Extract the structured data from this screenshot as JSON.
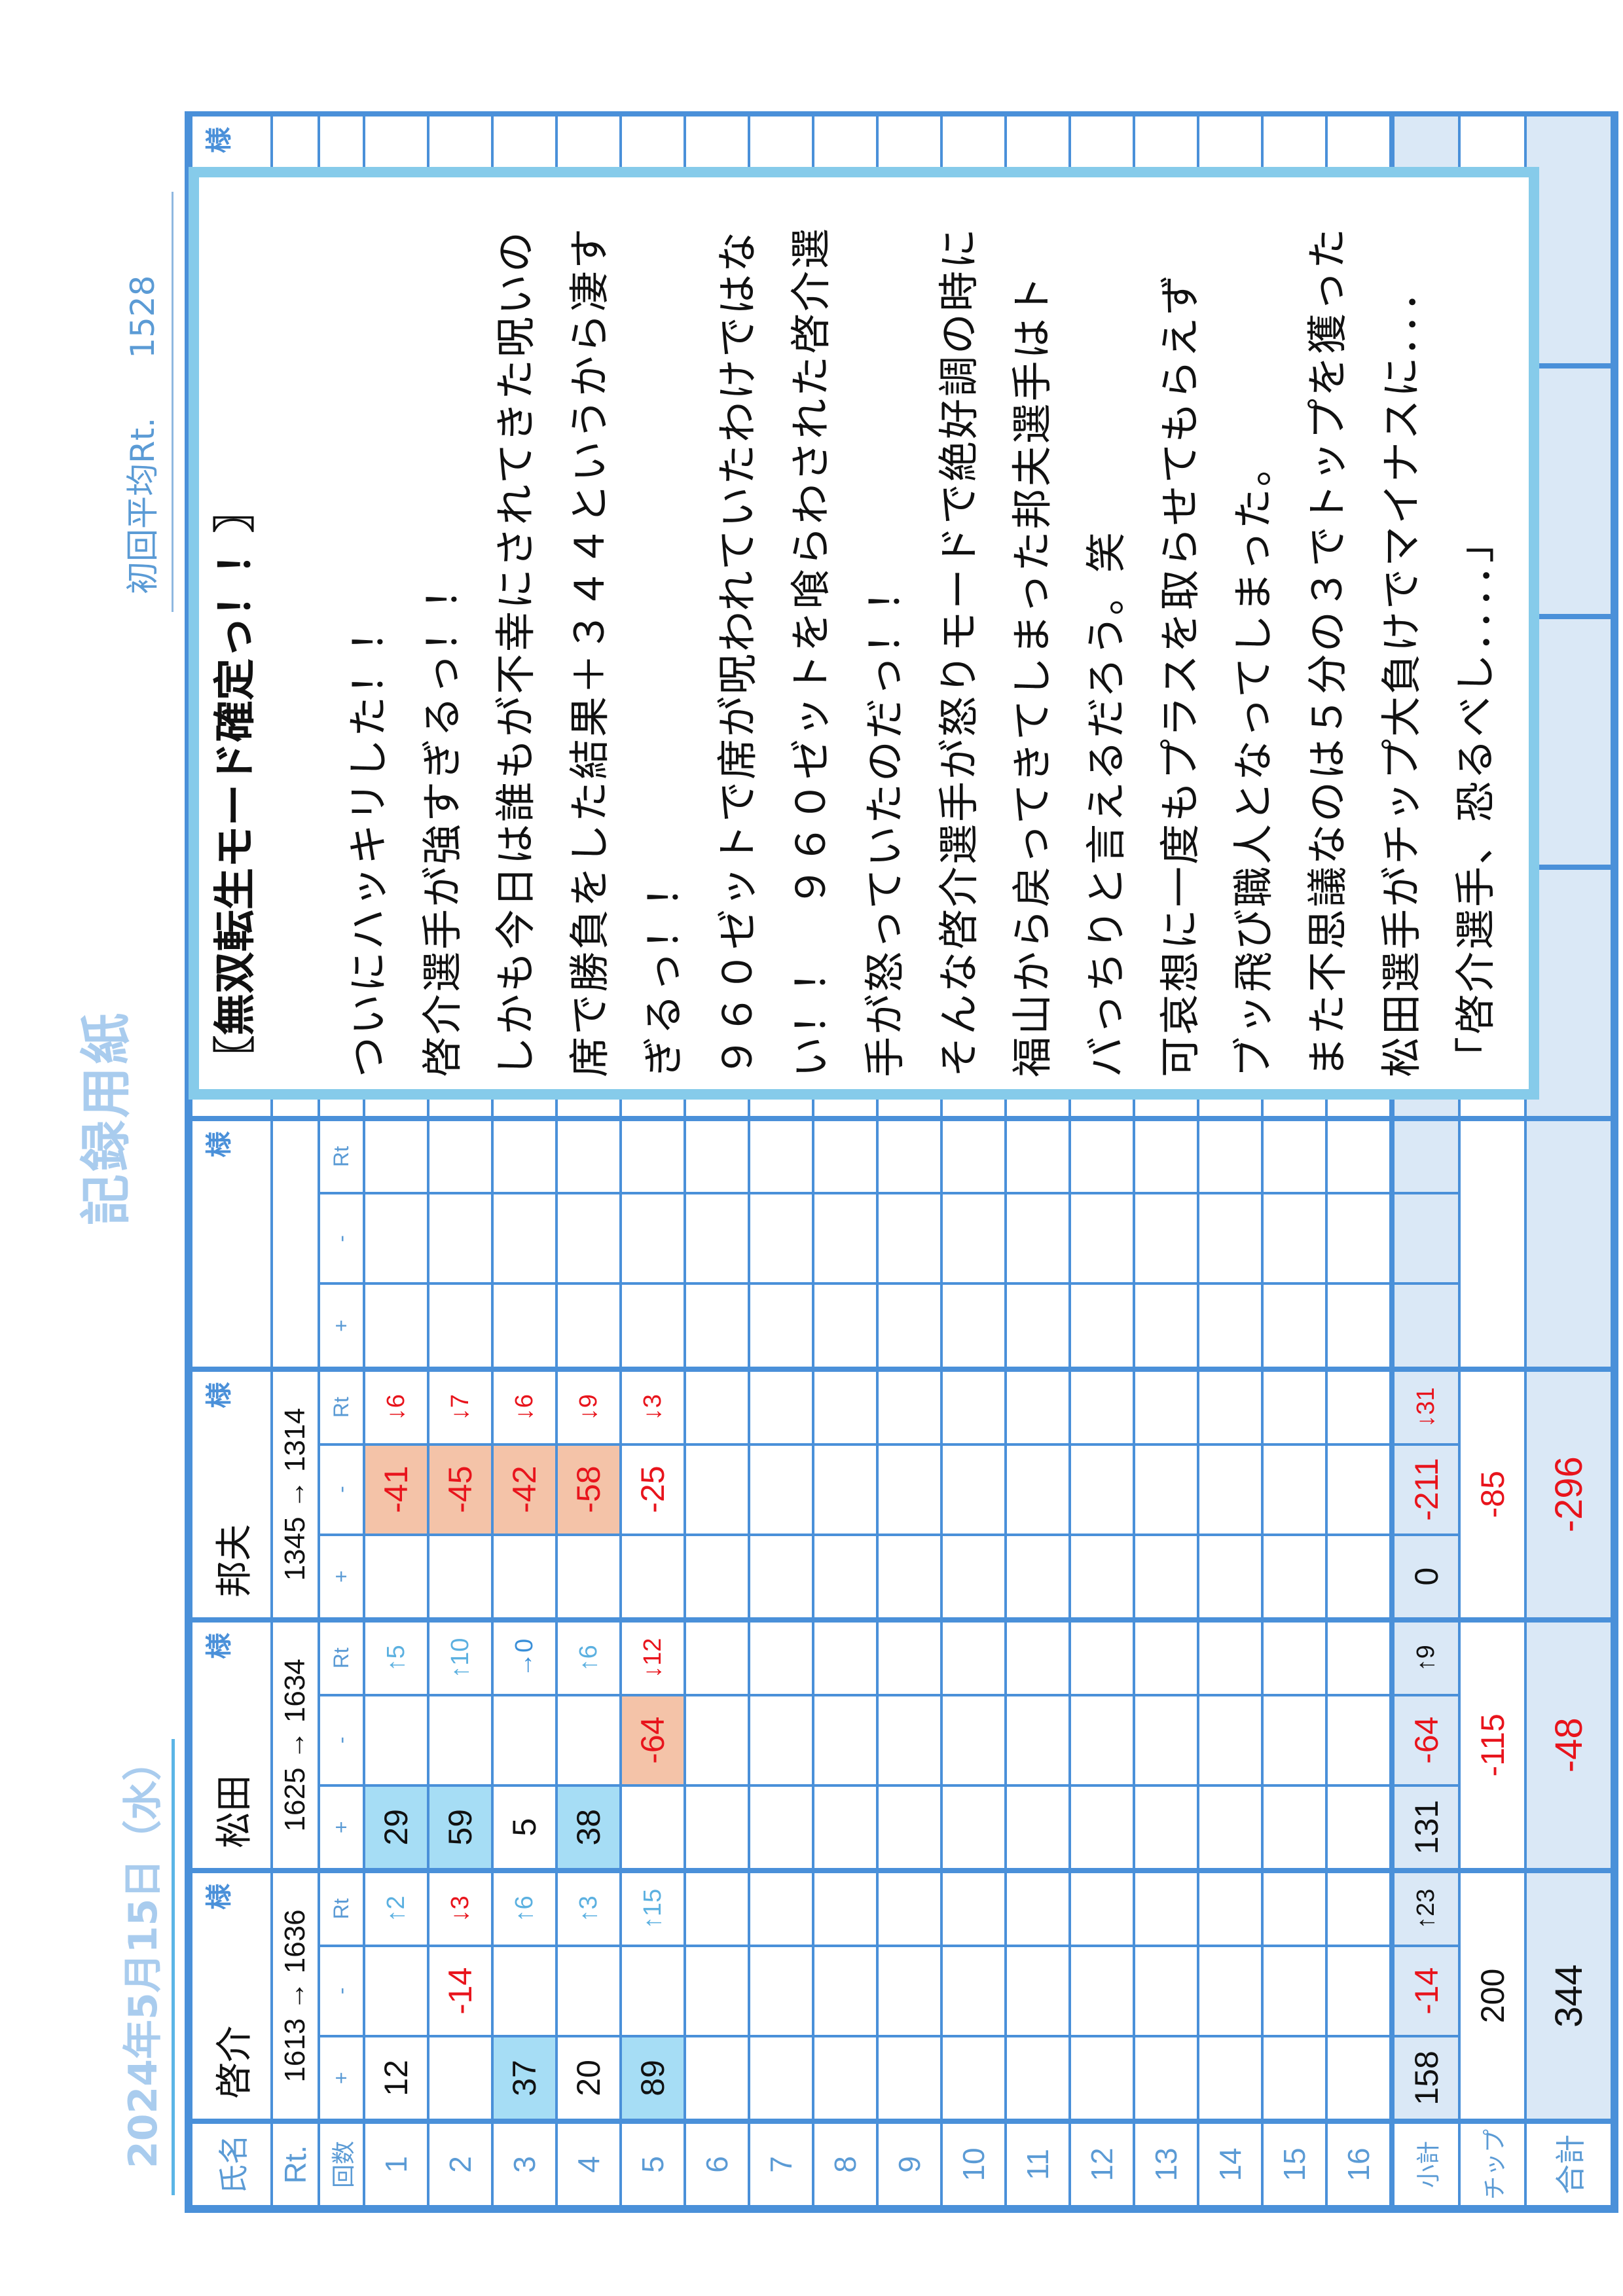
{
  "header": {
    "title": "記録用紙",
    "date": "2024年5月15日（水）",
    "avg_label": "初回平均Rt.",
    "avg_value": "1528"
  },
  "labels": {
    "name": "氏名",
    "rt": "Rt.",
    "rounds": "回数",
    "rows": [
      "1",
      "2",
      "3",
      "4",
      "5",
      "6",
      "7",
      "8",
      "9",
      "10",
      "11",
      "12",
      "13",
      "14",
      "15",
      "16"
    ],
    "subtotal": "小計",
    "chip": "チップ",
    "total": "合計",
    "plus": "+",
    "minus": "-",
    "rt_col": "Rt",
    "honorific": "様"
  },
  "colors": {
    "grid": "#4a90d9",
    "highlight_blue": "#a6ddf5",
    "highlight_salmon": "#f4c3a8",
    "negative": "#e8141c",
    "subtotal_bg": "#dae8f6"
  },
  "players": [
    {
      "name": "啓介",
      "rt_change": "1613 → 1636",
      "games": [
        {
          "plus": "12",
          "minus": "",
          "rt": "↑2",
          "dir": "up"
        },
        {
          "plus": "",
          "minus": "-14",
          "rt": "↓3",
          "dir": "down",
          "minus_hl": ""
        },
        {
          "plus": "37",
          "minus": "",
          "rt": "↑6",
          "dir": "up",
          "plus_hl": "blue"
        },
        {
          "plus": "20",
          "minus": "",
          "rt": "↑3",
          "dir": "up"
        },
        {
          "plus": "89",
          "minus": "",
          "rt": "↑15",
          "dir": "up",
          "plus_hl": "blue"
        }
      ],
      "subtotal": {
        "plus": "158",
        "minus": "-14",
        "rt": "↑23",
        "dir": "up"
      },
      "chip": "200",
      "total": "344"
    },
    {
      "name": "松田",
      "rt_change": "1625 → 1634",
      "games": [
        {
          "plus": "29",
          "minus": "",
          "rt": "↑5",
          "dir": "up",
          "plus_hl": "blue"
        },
        {
          "plus": "59",
          "minus": "",
          "rt": "↑10",
          "dir": "up",
          "plus_hl": "blue"
        },
        {
          "plus": "5",
          "minus": "",
          "rt": "→0",
          "dir": "flat"
        },
        {
          "plus": "38",
          "minus": "",
          "rt": "↑6",
          "dir": "up",
          "plus_hl": "blue"
        },
        {
          "plus": "",
          "minus": "-64",
          "rt": "↓12",
          "dir": "down",
          "minus_hl": "salmon"
        }
      ],
      "subtotal": {
        "plus": "131",
        "minus": "-64",
        "rt": "↑9",
        "dir": "up"
      },
      "chip": "-115",
      "total": "-48"
    },
    {
      "name": "邦夫",
      "rt_change": "1345 → 1314",
      "games": [
        {
          "plus": "",
          "minus": "-41",
          "rt": "↓6",
          "dir": "down",
          "minus_hl": "salmon"
        },
        {
          "plus": "",
          "minus": "-45",
          "rt": "↓7",
          "dir": "down",
          "minus_hl": "salmon"
        },
        {
          "plus": "",
          "minus": "-42",
          "rt": "↓6",
          "dir": "down",
          "minus_hl": "salmon"
        },
        {
          "plus": "",
          "minus": "-58",
          "rt": "↓9",
          "dir": "down",
          "minus_hl": "salmon"
        },
        {
          "plus": "",
          "minus": "-25",
          "rt": "↓3",
          "dir": "down"
        }
      ],
      "subtotal": {
        "plus": "0",
        "minus": "-211",
        "rt": "↓31",
        "dir": "down"
      },
      "chip": "-85",
      "total": "-296"
    },
    {
      "name": "",
      "rt_change": "",
      "games": [],
      "subtotal": {},
      "chip": "",
      "total": ""
    },
    {
      "name": "",
      "rt_change": "",
      "games": [],
      "subtotal": {},
      "chip": "",
      "total": ""
    },
    {
      "name": "",
      "rt_change": "",
      "games": [],
      "subtotal": {},
      "chip": "",
      "total": ""
    },
    {
      "name": "",
      "rt_change": "",
      "games": [],
      "subtotal": {},
      "chip": "",
      "total": ""
    },
    {
      "name": "",
      "rt_change": "",
      "games": [],
      "subtotal": {},
      "chip": "",
      "total": ""
    }
  ],
  "comment": {
    "title": "〖無双転生モード確定っ！！〗",
    "lines": [
      "ついにハッキリした！！",
      "啓介選手が強すぎるっ！！",
      "しかも今日は誰もが不幸にされてきた呪いの",
      "席で勝負をした結果＋３４４というから凄す",
      "ぎるっ！！",
      "９６０ゼットで席が呪われていたわけではな",
      "い！！　９６０ゼットを喰らわされた啓介選",
      "手が怒っていたのだっ！！",
      "そんな啓介選手が怒りモードで絶好調の時に",
      "福山から戻ってきてしまった邦夫選手はト",
      "バっちりと言えるだろう。笑",
      "可哀想に一度もプラスを取らせてもらえず",
      "ブッ飛び職人となってしまった。",
      "また不思議なのは５分の３でトップを獲った",
      "松田選手がチップ大負けでマイナスに．．．",
      "「啓介選手、恐るべし．．．．」"
    ]
  }
}
